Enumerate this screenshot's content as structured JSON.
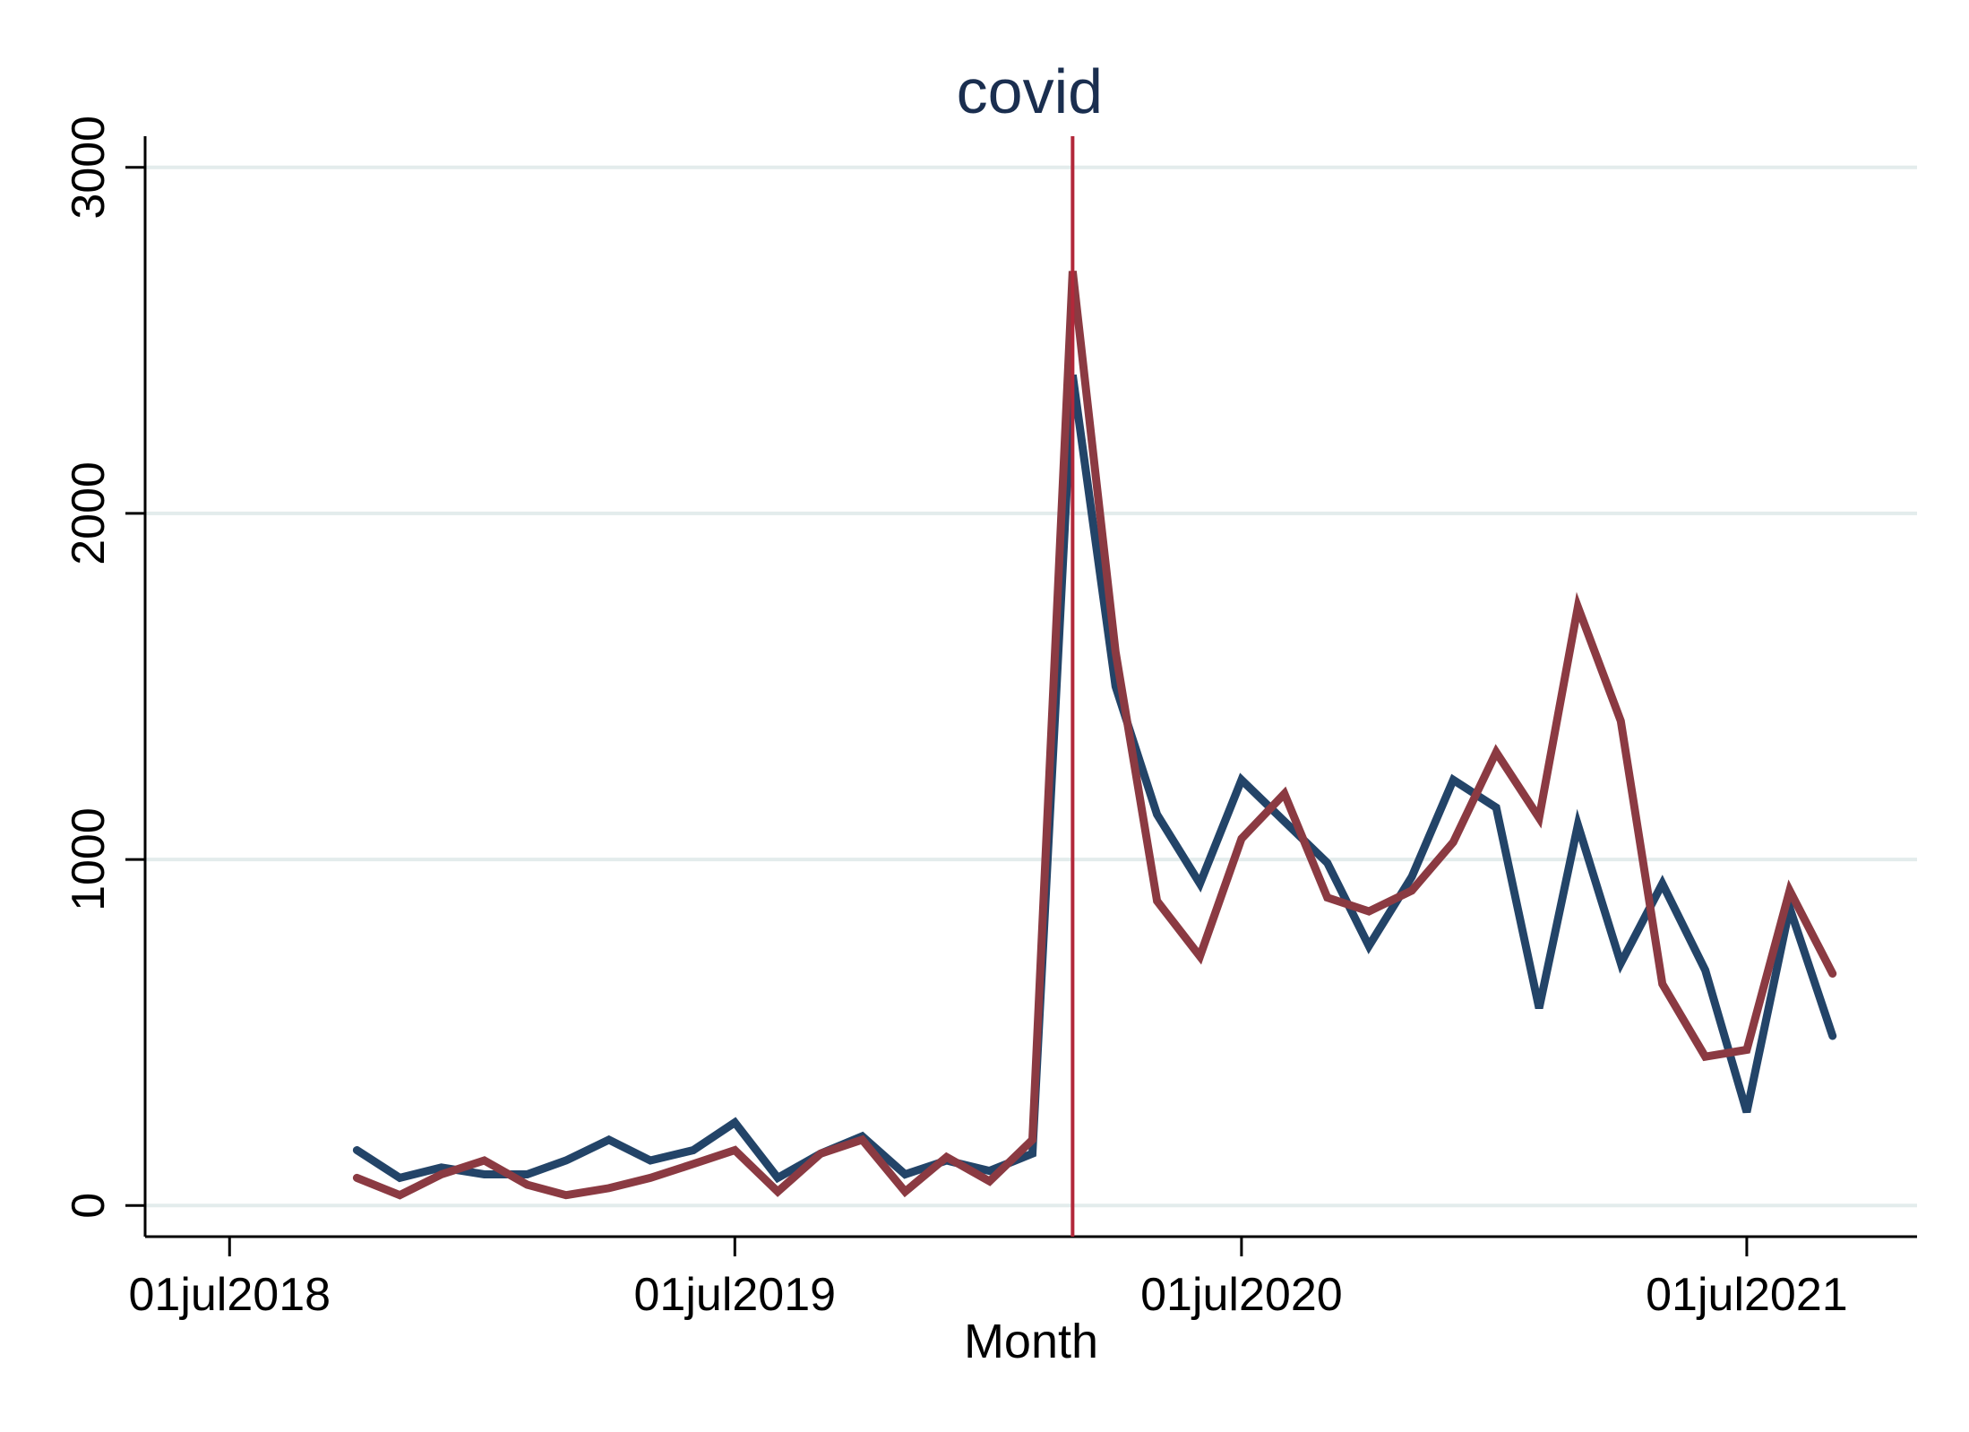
{
  "chart_data": {
    "type": "line",
    "title": "",
    "xlabel": "Month",
    "ylabel": "",
    "ylim": [
      -90,
      3090
    ],
    "xlim": [
      "2018-05-01",
      "2021-11-01"
    ],
    "yticks": [
      0,
      1000,
      2000,
      3000
    ],
    "ytick_labels": [
      "0",
      "1000",
      "2000",
      "3000"
    ],
    "xticks": [
      "2018-07-01",
      "2019-07-01",
      "2020-07-01",
      "2021-07-01"
    ],
    "xtick_labels": [
      "01jul2018",
      "01jul2019",
      "01jul2020",
      "01jul2021"
    ],
    "grid": "horizontal",
    "legend": "none",
    "annotations": [
      {
        "text": "covid",
        "x": "2020-03-01",
        "type": "vertical-line",
        "color": "#b2283a"
      }
    ],
    "x": [
      "2018-10-01",
      "2018-11-01",
      "2018-12-01",
      "2019-01-01",
      "2019-02-01",
      "2019-03-01",
      "2019-04-01",
      "2019-05-01",
      "2019-06-01",
      "2019-07-01",
      "2019-08-01",
      "2019-09-01",
      "2019-10-01",
      "2019-11-01",
      "2019-12-01",
      "2020-01-01",
      "2020-02-01",
      "2020-03-01",
      "2020-04-01",
      "2020-05-01",
      "2020-06-01",
      "2020-07-01",
      "2020-08-01",
      "2020-09-01",
      "2020-10-01",
      "2020-11-01",
      "2020-12-01",
      "2021-01-01",
      "2021-02-01",
      "2021-03-01",
      "2021-04-01",
      "2021-05-01",
      "2021-06-01",
      "2021-07-01",
      "2021-08-01",
      "2021-09-01",
      "2021-10-01"
    ],
    "series": [
      {
        "color": "#234468",
        "values": [
          160,
          80,
          110,
          90,
          90,
          130,
          190,
          130,
          160,
          240,
          80,
          150,
          200,
          90,
          130,
          100,
          150,
          2400,
          1500,
          1130,
          930,
          1230,
          1110,
          990,
          750,
          950,
          1230,
          1150,
          570,
          1100,
          700,
          930,
          680,
          270,
          860,
          490,
          null
        ]
      },
      {
        "color": "#8b3a42",
        "values": [
          80,
          30,
          90,
          130,
          60,
          30,
          50,
          80,
          120,
          160,
          40,
          150,
          190,
          40,
          140,
          70,
          190,
          2700,
          1600,
          880,
          720,
          1060,
          1190,
          890,
          850,
          910,
          1050,
          1310,
          1120,
          1730,
          1400,
          640,
          430,
          450,
          910,
          670,
          null
        ]
      }
    ]
  }
}
